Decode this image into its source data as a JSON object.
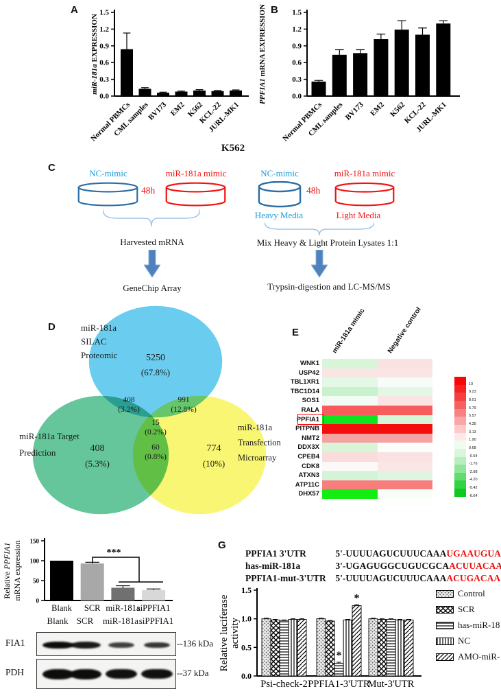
{
  "panels": {
    "a": "A",
    "b": "B",
    "c": "C",
    "d": "D",
    "e": "E",
    "g": "G"
  },
  "chart_data": [
    {
      "id": "svgA",
      "type": "bar",
      "ylabel_parts": [
        {
          "text": "miR-181a",
          "italic": true
        },
        {
          "text": " EXPRESSION",
          "italic": false
        }
      ],
      "categories": [
        "Normal PBMCs",
        "CML samples",
        "BV173",
        "EM2",
        "K562",
        "KCL-22",
        "JURL-MK1"
      ],
      "values": [
        0.84,
        0.13,
        0.06,
        0.08,
        0.1,
        0.09,
        0.1
      ],
      "errors": [
        0.29,
        0.02,
        0.01,
        0.01,
        0.015,
        0.01,
        0.01
      ],
      "ylim": [
        0,
        1.5
      ],
      "yticks": [
        0,
        0.3,
        0.6,
        0.9,
        1.2,
        1.5
      ]
    },
    {
      "id": "svgB",
      "type": "bar",
      "ylabel_parts": [
        {
          "text": "PPFIA1",
          "italic": true
        },
        {
          "text": " mRNA EXPRESSION",
          "italic": false
        }
      ],
      "categories": [
        "Normal PBMCs",
        "CML samples",
        "BV173",
        "EM2",
        "K562",
        "KCL-22",
        "JURL-MK1"
      ],
      "values": [
        0.26,
        0.74,
        0.77,
        1.02,
        1.19,
        1.1,
        1.3
      ],
      "errors": [
        0.02,
        0.09,
        0.06,
        0.09,
        0.16,
        0.12,
        0.05
      ],
      "ylim": [
        0,
        1.5
      ],
      "yticks": [
        0,
        0.3,
        0.6,
        0.9,
        1.2,
        1.5
      ]
    },
    {
      "id": "svgF",
      "type": "bar",
      "ylabel_lines": [
        {
          "parts": [
            {
              "text": "Relative ",
              "italic": false
            },
            {
              "text": "PPFIA1",
              "italic": true
            }
          ]
        },
        {
          "parts": [
            {
              "text": "mRNA expression",
              "italic": false
            }
          ]
        }
      ],
      "categories": [
        "Blank",
        "SCR",
        "miR-181a",
        "siPPFIA1"
      ],
      "values": [
        100,
        93,
        32,
        26
      ],
      "errors": [
        0,
        3,
        5,
        3
      ],
      "colors": [
        "#000000",
        "#a8a8a8",
        "#707070",
        "#d8d8d8"
      ],
      "ylim": [
        0,
        150
      ],
      "yticks": [
        0,
        50,
        100,
        150
      ],
      "significance": {
        "text": "***"
      }
    },
    {
      "id": "svgG",
      "type": "grouped-bar",
      "ylabel_lines": [
        {
          "parts": [
            {
              "text": "Relative luciferase",
              "italic": false
            }
          ]
        },
        {
          "parts": [
            {
              "text": "activity",
              "italic": false
            }
          ]
        }
      ],
      "groups": [
        "Psi-check-2",
        "PPFIA1-3'UTR",
        "Mut-3'UTR"
      ],
      "series": [
        {
          "name": "Control",
          "pattern": "dots",
          "values": [
            1.0,
            1.0,
            1.0
          ],
          "errors": [
            0.01,
            0.01,
            0.01
          ]
        },
        {
          "name": "SCR",
          "pattern": "check",
          "values": [
            0.98,
            0.96,
            0.99
          ],
          "errors": [
            0.01,
            0.01,
            0.01
          ]
        },
        {
          "name": "has-miR-18",
          "pattern": "hlines",
          "values": [
            0.97,
            0.22,
            0.99
          ],
          "errors": [
            0.01,
            0.02,
            0.01
          ]
        },
        {
          "name": "NC",
          "pattern": "vlines",
          "values": [
            0.99,
            0.98,
            0.98
          ],
          "errors": [
            0.01,
            0.01,
            0.01
          ]
        },
        {
          "name": "AMO-miR-",
          "pattern": "diag",
          "values": [
            0.99,
            1.23,
            0.98
          ],
          "errors": [
            0.01,
            0.015,
            0.01
          ]
        }
      ],
      "ylim": [
        0,
        1.5
      ],
      "yticks": [
        0,
        0.5,
        1.0,
        1.5
      ],
      "annotations": [
        {
          "group": 1,
          "series": 2,
          "text": "*"
        },
        {
          "group": 1,
          "series": 4,
          "text": "*"
        }
      ],
      "legend_position": "right"
    }
  ],
  "panel_c": {
    "title": "K562",
    "left": {
      "dish1": "NC-mimic",
      "dish2": "miR-181a mimic",
      "time": "48h",
      "step1": "Harvested mRNA",
      "step2": "GeneChip Array"
    },
    "right": {
      "dish1": "NC-mimic",
      "dish2": "miR-181a mimic",
      "time": "48h",
      "media1": "Heavy Media",
      "media2": "Light Media",
      "step1": "Mix Heavy & Light Protein Lysates 1:1",
      "step2": "Trypsin-digestion and LC-MS/MS"
    }
  },
  "venn": {
    "circles": [
      {
        "name": "silac",
        "color": "#55c6ee",
        "lines": [
          "miR-181a",
          "SILAC",
          "Proteomic"
        ],
        "value": "5250",
        "pct": "(67.8%)"
      },
      {
        "name": "prediction",
        "color": "#4fbe8c",
        "lines": [
          "miR-181a Target",
          "Prediction"
        ],
        "value": "408",
        "pct": "(5.3%)"
      },
      {
        "name": "microarray",
        "color": "#f7f55e",
        "lines": [
          "miR-181a",
          "Transfection",
          "Microarray"
        ],
        "value": "774",
        "pct": "(10%)"
      }
    ],
    "overlaps": [
      {
        "name": "silac-prediction",
        "value": "408",
        "pct": "(3.2%)"
      },
      {
        "name": "silac-microarray",
        "value": "991",
        "pct": "(12.8%)"
      },
      {
        "name": "center",
        "value": "15",
        "pct": "(0.2%)"
      },
      {
        "name": "prediction-microarray",
        "value": "60",
        "pct": "(0.8%)"
      }
    ]
  },
  "heatmap": {
    "columns": [
      "miR-181a mimic",
      "Negative control"
    ],
    "rows": [
      {
        "gene": "WNK1",
        "colors": [
          "#d8f5da",
          "#fbe2e2"
        ]
      },
      {
        "gene": "USP42",
        "colors": [
          "#fae5e5",
          "#fae5e5"
        ]
      },
      {
        "gene": "TBL1XR1",
        "colors": [
          "#e4f8e6",
          "#f7fcf8"
        ]
      },
      {
        "gene": "TBC1D14",
        "colors": [
          "#c9f1cd",
          "#e2f7e4"
        ]
      },
      {
        "gene": "SOS1",
        "colors": [
          "#f2fbf4",
          "#fbe3e3"
        ]
      },
      {
        "gene": "RALA",
        "colors": [
          "#f75b5b",
          "#f75b5b"
        ]
      },
      {
        "gene": "PPFIA1",
        "colors": [
          "#0ee520",
          "#d5f4d8"
        ],
        "highlight": true
      },
      {
        "gene": "PITPNB",
        "colors": [
          "#f40d0d",
          "#f40d0d"
        ]
      },
      {
        "gene": "NMT2",
        "colors": [
          "#f5a2a2",
          "#f5a2a2"
        ]
      },
      {
        "gene": "DDX3X",
        "colors": [
          "#d8f5da",
          "#fcfefc"
        ]
      },
      {
        "gene": "CPEB4",
        "colors": [
          "#fadcdc",
          "#fbe2e2"
        ]
      },
      {
        "gene": "CDK8",
        "colors": [
          "#fcf8f8",
          "#fbe6e6"
        ]
      },
      {
        "gene": "ATXN3",
        "colors": [
          "#d5f4d7",
          "#def6e1"
        ]
      },
      {
        "gene": "ATP11C",
        "colors": [
          "#f87e7e",
          "#f87e7e"
        ]
      },
      {
        "gene": "DHX57",
        "colors": [
          "#12ee12",
          "#f8fdf8"
        ]
      }
    ],
    "colorbar": {
      "labels": [
        "10",
        "9.23",
        "8.01",
        "6.79",
        "5.57",
        "4.35",
        "3.13",
        "1.90",
        "0.68",
        "-0.54",
        "-1.76",
        "-2.98",
        "-4.20",
        "-5.42",
        "-6.64"
      ],
      "colors": [
        "#fa0606",
        "#f52222",
        "#f54040",
        "#f66060",
        "#f88282",
        "#fba6a6",
        "#fdc9c9",
        "#fde9e9",
        "#f0fbf0",
        "#d8f6da",
        "#b8efbc",
        "#90e698",
        "#62dc6e",
        "#34d344",
        "#0ccb1e"
      ]
    }
  },
  "blot": {
    "lanes": [
      "Blank",
      "SCR",
      "miR-181a",
      "siPPFIA1"
    ],
    "rows": [
      {
        "label": "FIA1",
        "marker": "--136 kDa",
        "intensities": [
          1,
          0.85,
          0.45,
          0.55
        ],
        "band_h": 10
      },
      {
        "label": "PDH",
        "marker": "--37 kDa",
        "intensities": [
          1,
          1,
          0.95,
          0.95
        ],
        "band_h": 15
      }
    ]
  },
  "sequences": {
    "rows": [
      {
        "name": "PPFIA1 3'UTR",
        "black": "5'-UUUUAGUCUUUCAAA",
        "red": "UGAAUGUA"
      },
      {
        "name": "has-miR-181a",
        "black": "3'-UGAGUGGCUGUCGCA",
        "red": "ACUUACAA"
      },
      {
        "name": "PPFIA1-mut-3'UTR",
        "black": "5'-UUUUAGUCUUUCAAA",
        "red": "ACUGACAA"
      }
    ]
  }
}
